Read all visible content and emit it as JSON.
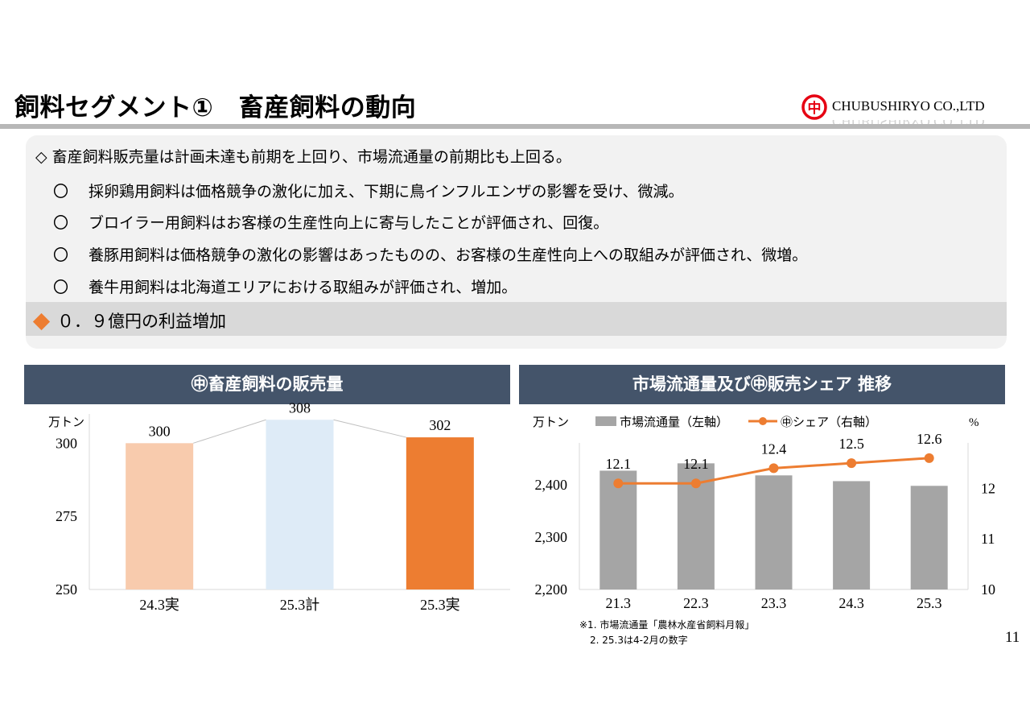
{
  "page": {
    "title": "飼料セグメント①　畜産飼料の動向",
    "company": "CHUBUSHIRYO CO.,LTD",
    "logo_mark": "中",
    "page_number": "11"
  },
  "summary": {
    "main": "◇ 畜産飼料販売量は計画未達も前期を上回り、市場流通量の前期比も上回る。",
    "bullet_mark": "〇",
    "items": [
      "採卵鶏用飼料は価格競争の激化に加え、下期に鳥インフルエンザの影響を受け、微減。",
      "ブロイラー用飼料はお客様の生産性向上に寄与したことが評価され、回復。",
      "養豚用飼料は価格競争の激化の影響はあったものの、お客様の生産性向上への取組みが評価され、微増。",
      "養牛用飼料は北海道エリアにおける取組みが評価され、増加。"
    ],
    "profit": "０．９億円の利益増加"
  },
  "colors": {
    "accent": "#ed7d31",
    "header_bg": "#44546a",
    "bar_light_orange": "#f8cbad",
    "bar_light_blue": "#deebf7",
    "bar_gray": "#a5a5a5",
    "logo_red": "#e60012"
  },
  "chart_data": [
    {
      "type": "bar",
      "title": "㊥畜産飼料の販売量",
      "ylabel": "万トン",
      "categories": [
        "24.3実",
        "25.3計",
        "25.3実"
      ],
      "values": [
        300,
        308,
        302
      ],
      "data_labels": [
        "300",
        "308",
        "302"
      ],
      "ylim": [
        250,
        310
      ],
      "yticks": [
        "250",
        "275",
        "300"
      ],
      "connector_lines": true
    },
    {
      "type": "bar",
      "title": "市場流通量及び㊥販売シェア 推移",
      "ylabel": "万トン",
      "y2label": "%",
      "categories": [
        "21.3",
        "22.3",
        "23.3",
        "24.3",
        "25.3"
      ],
      "series": [
        {
          "name": "市場流通量（左軸）",
          "type": "bar",
          "values": [
            2427,
            2441,
            2418,
            2407,
            2398
          ]
        },
        {
          "name": "㊥シェア（右軸）",
          "type": "line",
          "values": [
            12.1,
            12.1,
            12.4,
            12.5,
            12.6
          ],
          "data_labels": [
            "12.1",
            "12.1",
            "12.4",
            "12.5",
            "12.6"
          ]
        }
      ],
      "ylim": [
        2200,
        2480
      ],
      "y2lim": [
        10,
        12.9
      ],
      "yticks": [
        "2,200",
        "2,300",
        "2,400"
      ],
      "y2ticks": [
        "10",
        "11",
        "12"
      ],
      "legend_position": "top",
      "notes": [
        "※1. 市場流通量「農林水産省飼料月報」",
        "2. 25.3は4-2月の数字"
      ]
    }
  ]
}
